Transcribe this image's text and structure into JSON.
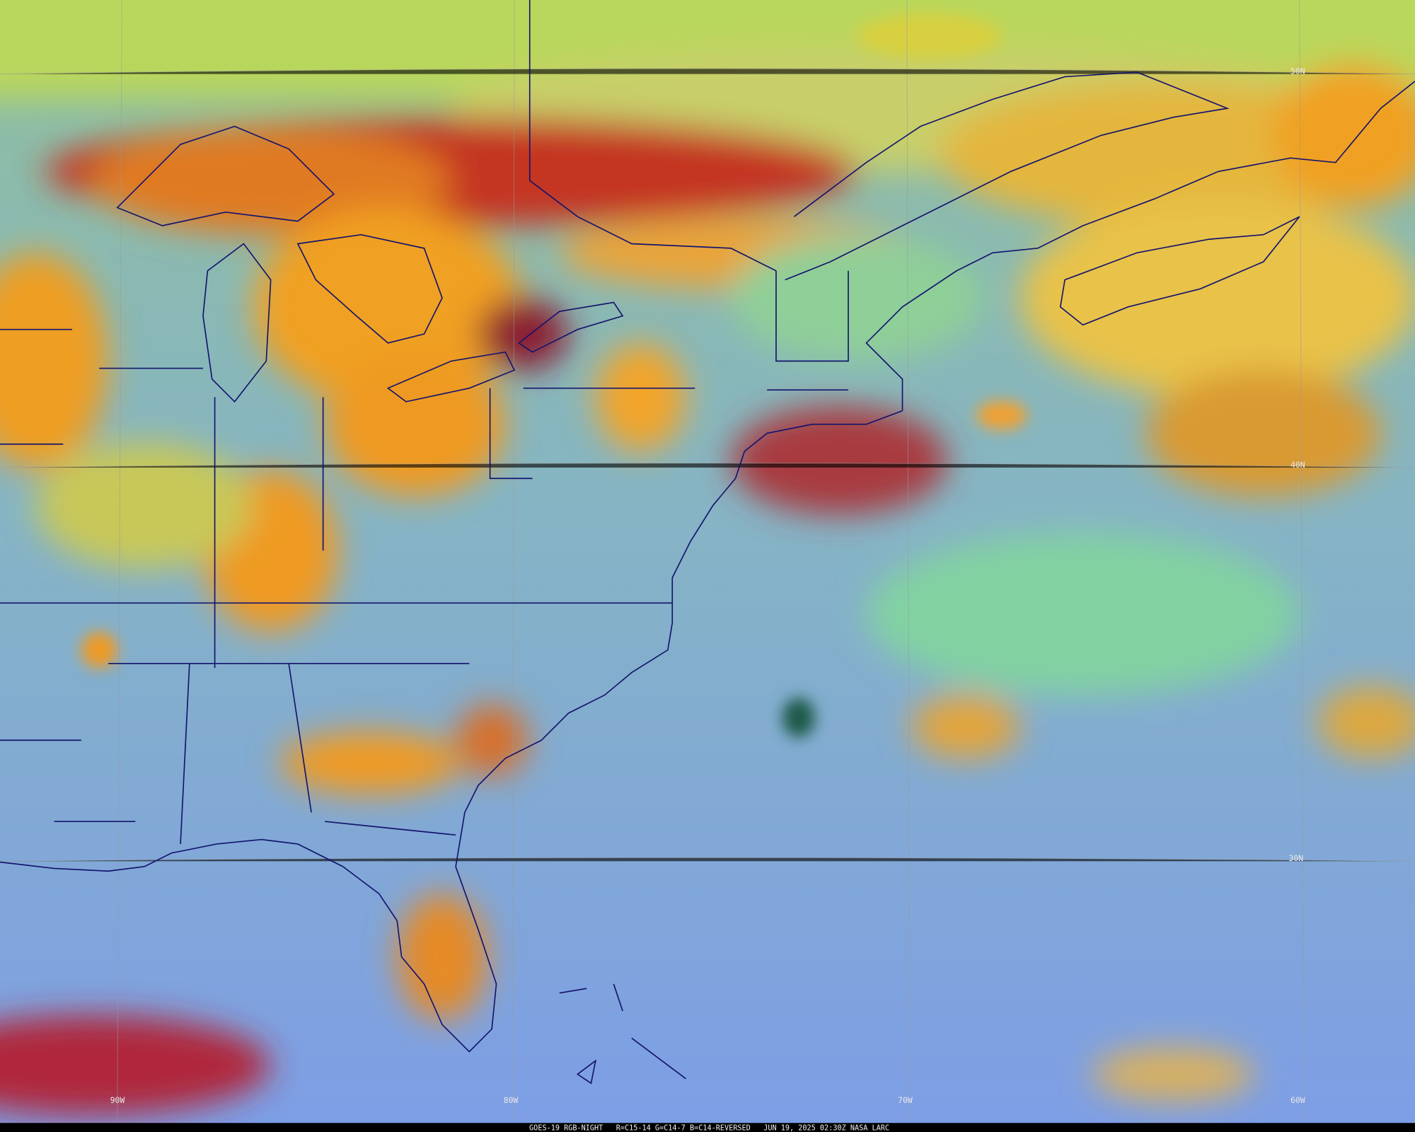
{
  "map": {
    "lat_labels": [
      "50N",
      "40N",
      "30N"
    ],
    "lon_labels": [
      "90W",
      "80W",
      "70W",
      "60W"
    ],
    "footer": "GOES-19 RGB-NIGHT   R=C15-14 G=C14-7 B=C14-REVERSED   JUN 19, 2025 02:30Z NASA LARC"
  }
}
